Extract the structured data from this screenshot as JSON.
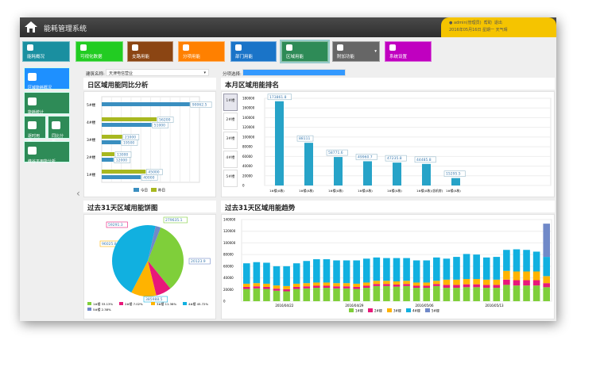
{
  "app": {
    "title": "能耗管理系统",
    "user": "admin(管理员)",
    "help": "帮助",
    "logout": "退出",
    "notice": "2016年05月16日 星期一 天气晴"
  },
  "tiles": [
    {
      "label": "能耗概况",
      "color": "#1a8fa0"
    },
    {
      "label": "可视化数据",
      "color": "#22cc22"
    },
    {
      "label": "支路用能",
      "color": "#8b4513"
    },
    {
      "label": "分项用能",
      "color": "#ff8000"
    },
    {
      "label": "部门用能",
      "color": "#1a74c8"
    },
    {
      "label": "区域用能",
      "color": "#2e8b57"
    },
    {
      "label": "附加功能",
      "color": "#666666"
    },
    {
      "label": "系统设置",
      "color": "#c000c0"
    }
  ],
  "sidebar": [
    {
      "label": "区域能耗概况",
      "color": "#1e90ff"
    },
    {
      "label": "能耗统计",
      "color": "#2e8b57"
    },
    {
      "label": "逐时用能",
      "color": "#2e8b57"
    },
    {
      "label": "同比分析",
      "color": "#2e8b57"
    },
    {
      "label": "峰谷平用能分析",
      "color": "#2e8b57"
    }
  ],
  "filters": {
    "building_label": "建筑名称:",
    "building_value": "天津电信营业",
    "item_label": "分项选择:",
    "item_value": ""
  },
  "panels": {
    "daily": "日区域用能同比分析",
    "ranking": "本月区域用能排名",
    "pie": "过去31天区域用能饼图",
    "trend": "过去31天区域用能趋势"
  },
  "ranking_tabs": [
    "1#楼",
    "2#楼",
    "3#楼",
    "4#楼",
    "5#楼"
  ],
  "chart_data": [
    {
      "type": "bar",
      "orientation": "horizontal",
      "categories": [
        "5#楼",
        "4#楼",
        "3#楼",
        "2#楼",
        "1#楼"
      ],
      "series": [
        {
          "name": "今日",
          "color": "#3a8fc0",
          "values": [
            90062.5,
            51000,
            19500,
            12000,
            40000
          ]
        },
        {
          "name": "昨日",
          "color": "#a8b820",
          "values": [
            null,
            56200,
            21000,
            13000,
            45000
          ]
        }
      ],
      "legend": "bottom"
    },
    {
      "type": "bar",
      "categories": [
        "1#楼(A栋)",
        "1#楼(A栋)",
        "1#楼(A栋)",
        "1#楼(A栋)",
        "1#楼(A栋)",
        "1#楼(A栋)(含机房)",
        "1#楼(A栋)"
      ],
      "values": [
        173861.8,
        88111,
        58771.6,
        49960.7,
        47235.8,
        44485.8,
        15295.5
      ],
      "color": "#27a3c8",
      "ylim": [
        0,
        180000
      ],
      "yticks": [
        0,
        20000,
        40000,
        60000,
        80000,
        100000,
        120000,
        140000,
        160000,
        180000
      ]
    },
    {
      "type": "pie",
      "slices": [
        {
          "name": "1#楼",
          "pct": "33.13%",
          "value": 279635.1,
          "color": "#7fcf3a"
        },
        {
          "name": "2#楼",
          "pct": "7.02%",
          "value": 59291.3,
          "color": "#e8187a"
        },
        {
          "name": "3#楼",
          "pct": "11.38%",
          "value": 96025.8,
          "color": "#ffb300"
        },
        {
          "name": "4#楼",
          "pct": "45.72%",
          "value": 385988.5,
          "color": "#11b0e0"
        },
        {
          "name": "5#楼",
          "pct": "2.38%",
          "value": 20123.9,
          "color": "#7089c8"
        }
      ],
      "legend": "bottom"
    },
    {
      "type": "bar",
      "stacked": true,
      "ylim": [
        0,
        140000
      ],
      "yticks": [
        0,
        20000,
        40000,
        60000,
        80000,
        100000,
        120000,
        140000
      ],
      "xticks": [
        {
          "index": 4,
          "label": "2016/04/22"
        },
        {
          "index": 11,
          "label": "2016/04/29"
        },
        {
          "index": 18,
          "label": "2016/05/06"
        },
        {
          "index": 25,
          "label": "2016/05/13"
        }
      ],
      "series": [
        {
          "name": "1#楼",
          "color": "#7fcf3a",
          "values": [
            21000,
            22000,
            21000,
            18000,
            17000,
            21000,
            22000,
            23000,
            23000,
            22000,
            22000,
            21000,
            23000,
            26000,
            26000,
            25000,
            26000,
            23000,
            23000,
            26000,
            23000,
            23000,
            24000,
            24000,
            23000,
            23000,
            28000,
            27000,
            27000,
            27000,
            24000
          ]
        },
        {
          "name": "2#楼",
          "color": "#e8187a",
          "values": [
            3500,
            3500,
            3500,
            3500,
            3500,
            3500,
            3500,
            3500,
            3500,
            3500,
            3500,
            3500,
            3500,
            3500,
            3500,
            3500,
            3500,
            3500,
            3500,
            3500,
            5000,
            5000,
            5000,
            5000,
            5000,
            5000,
            9000,
            9000,
            9000,
            9000,
            7000
          ]
        },
        {
          "name": "3#楼",
          "color": "#ffb300",
          "values": [
            5500,
            5500,
            5500,
            5500,
            5500,
            5500,
            5500,
            5500,
            5500,
            5500,
            5500,
            5500,
            5500,
            5500,
            5500,
            5500,
            5500,
            5500,
            5500,
            5500,
            9000,
            9000,
            9000,
            9000,
            9000,
            9000,
            15000,
            15000,
            15000,
            15000,
            12000
          ]
        },
        {
          "name": "4#楼",
          "color": "#11b0e0",
          "values": [
            35000,
            36000,
            36000,
            33000,
            34000,
            35000,
            38000,
            40000,
            40000,
            39000,
            39000,
            40000,
            41000,
            40000,
            39000,
            40000,
            39000,
            38000,
            38000,
            40000,
            36000,
            39000,
            43000,
            42000,
            38000,
            39000,
            36000,
            38000,
            37000,
            34000,
            33000
          ]
        },
        {
          "name": "5#楼",
          "color": "#7089c8",
          "values": [
            0,
            0,
            0,
            0,
            0,
            0,
            0,
            0,
            0,
            0,
            0,
            0,
            0,
            0,
            0,
            0,
            0,
            0,
            0,
            0,
            0,
            0,
            0,
            0,
            0,
            0,
            0,
            0,
            0,
            0,
            57000
          ]
        }
      ],
      "legend": "bottom"
    }
  ]
}
